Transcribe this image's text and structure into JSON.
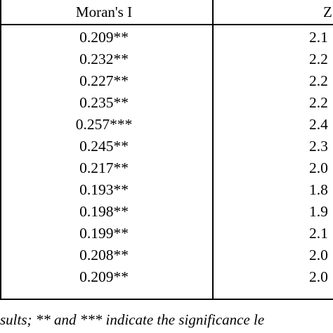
{
  "table": {
    "columns": [
      "Moran's I",
      "Z"
    ],
    "rows": [
      {
        "morans_i": "0.209**",
        "z": "2.1"
      },
      {
        "morans_i": "0.232**",
        "z": "2.2"
      },
      {
        "morans_i": "0.227**",
        "z": "2.2"
      },
      {
        "morans_i": "0.235**",
        "z": "2.2"
      },
      {
        "morans_i": "0.257***",
        "z": "2.4"
      },
      {
        "morans_i": "0.245**",
        "z": "2.3"
      },
      {
        "morans_i": "0.217**",
        "z": "2.0"
      },
      {
        "morans_i": "0.193**",
        "z": "1.8"
      },
      {
        "morans_i": "0.198**",
        "z": "1.9"
      },
      {
        "morans_i": "0.199**",
        "z": "2.1"
      },
      {
        "morans_i": "0.208**",
        "z": "2.0"
      },
      {
        "morans_i": "0.209**",
        "z": "2.0"
      }
    ]
  },
  "note": "sults; ** and *** indicate the significance le"
}
